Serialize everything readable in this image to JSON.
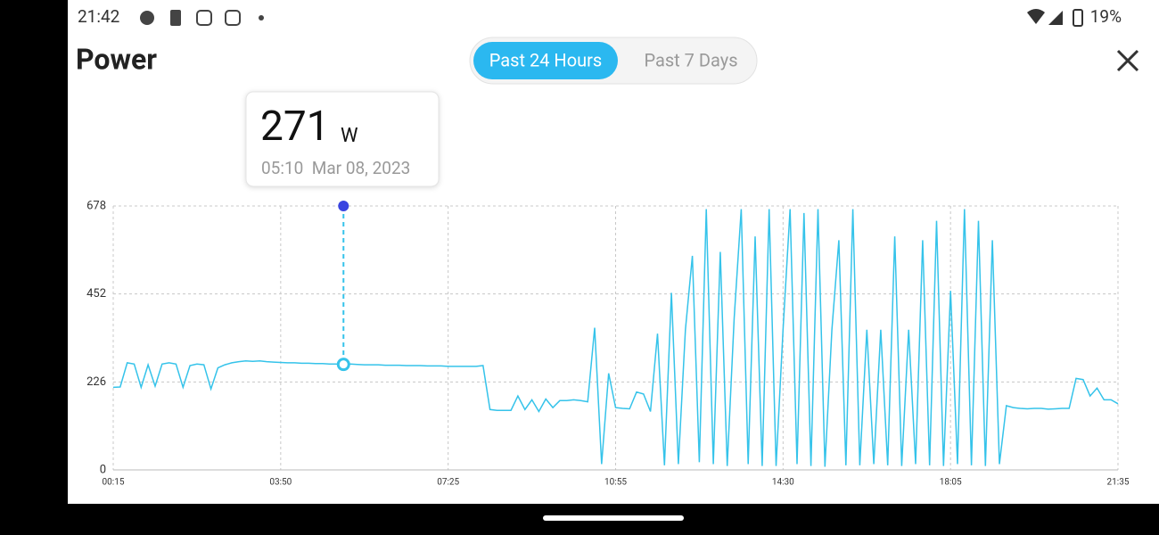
{
  "status_bar": {
    "time": "21:42",
    "battery": "19%"
  },
  "header": {
    "title": "Power",
    "tabs": [
      "Past 24 Hours",
      "Past 7 Days"
    ],
    "active_tab": 0
  },
  "tooltip": {
    "value": 271,
    "unit": "W",
    "time": "05:10  Mar 08, 2023"
  },
  "chart_data": {
    "type": "line",
    "color": "#35c3ea",
    "grid": true,
    "ylim": [
      0,
      678
    ],
    "yticks": [
      0,
      226,
      452,
      678
    ],
    "selected_index": 33,
    "categories": [
      "00:15",
      null,
      null,
      null,
      null,
      null,
      null,
      null,
      null,
      null,
      null,
      null,
      null,
      null,
      null,
      null,
      null,
      null,
      null,
      null,
      null,
      null,
      null,
      null,
      "03:50",
      null,
      null,
      null,
      null,
      null,
      null,
      null,
      null,
      null,
      null,
      null,
      null,
      null,
      null,
      null,
      null,
      null,
      null,
      null,
      null,
      null,
      null,
      null,
      "07:25",
      null,
      null,
      null,
      null,
      null,
      null,
      null,
      null,
      null,
      null,
      null,
      null,
      null,
      null,
      null,
      null,
      null,
      null,
      null,
      null,
      null,
      null,
      null,
      "10:55",
      null,
      null,
      null,
      null,
      null,
      null,
      null,
      null,
      null,
      null,
      null,
      null,
      null,
      null,
      null,
      null,
      null,
      null,
      null,
      null,
      null,
      null,
      null,
      "14:30",
      null,
      null,
      null,
      null,
      null,
      null,
      null,
      null,
      null,
      null,
      null,
      null,
      null,
      null,
      null,
      null,
      null,
      null,
      null,
      null,
      null,
      null,
      null,
      "18:05",
      null,
      null,
      null,
      null,
      null,
      null,
      null,
      null,
      null,
      null,
      null,
      null,
      null,
      null,
      null,
      null,
      null,
      null,
      null,
      null,
      null,
      null,
      null,
      "21:35"
    ],
    "values": [
      212,
      213,
      275,
      272,
      212,
      270,
      215,
      272,
      275,
      272,
      212,
      268,
      272,
      270,
      208,
      262,
      270,
      275,
      278,
      280,
      279,
      280,
      278,
      277,
      276,
      275,
      275,
      274,
      274,
      273,
      273,
      272,
      272,
      271,
      272,
      271,
      270,
      270,
      270,
      269,
      269,
      269,
      268,
      268,
      268,
      267,
      267,
      267,
      266,
      266,
      266,
      266,
      266,
      268,
      155,
      153,
      153,
      153,
      190,
      155,
      180,
      150,
      182,
      160,
      178,
      178,
      180,
      178,
      175,
      365,
      15,
      248,
      160,
      158,
      157,
      200,
      195,
      150,
      350,
      12,
      455,
      15,
      360,
      550,
      20,
      670,
      15,
      560,
      10,
      390,
      670,
      15,
      600,
      10,
      670,
      10,
      360,
      670,
      15,
      660,
      10,
      670,
      8,
      360,
      590,
      12,
      670,
      12,
      360,
      15,
      360,
      12,
      600,
      10,
      360,
      15,
      590,
      12,
      640,
      10,
      460,
      15,
      670,
      12,
      640,
      10,
      590,
      15,
      165,
      160,
      158,
      157,
      158,
      158,
      156,
      157,
      158,
      158,
      235,
      232,
      190,
      210,
      180,
      180,
      170
    ]
  }
}
